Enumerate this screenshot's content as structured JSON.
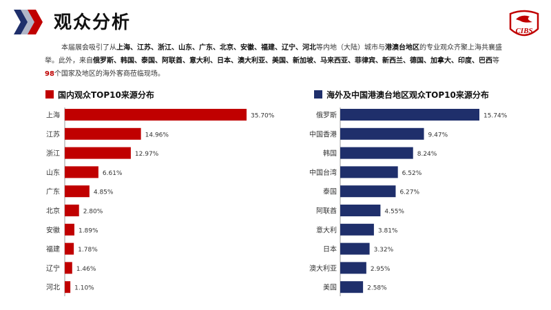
{
  "page": {
    "title": "观众分析",
    "logo_text": "CIBS"
  },
  "intro": {
    "p1": "本届展会吸引了从",
    "provinces": "上海、江苏、浙江、山东、广东、北京、安徽、福建、辽宁、河北",
    "p2": "等内地（大陆）城市与",
    "region": "港澳台地区",
    "p3": "的专业观众齐聚上海共襄盛举。此外，来自",
    "countries": "俄罗斯、韩国、泰国、阿联酋、意大利、日本、澳大利亚、美国、新加坡、马来西亚、菲律宾、新西兰、德国、加拿大、印度、巴西",
    "p4": "等",
    "count": "98",
    "p5": "个国家及地区的海外客商莅临现场。"
  },
  "colors": {
    "domestic": "#c00000",
    "overseas": "#1f2f6b"
  },
  "chart_data": [
    {
      "type": "bar",
      "orientation": "horizontal",
      "title": "国内观众TOP10来源分布",
      "categories": [
        "上海",
        "江苏",
        "浙江",
        "山东",
        "广东",
        "北京",
        "安徽",
        "福建",
        "辽宁",
        "河北"
      ],
      "values": [
        35.7,
        14.96,
        12.97,
        6.61,
        4.85,
        2.8,
        1.89,
        1.78,
        1.46,
        1.1
      ],
      "labels": [
        "35.70%",
        "14.96%",
        "12.97%",
        "6.61%",
        "4.85%",
        "2.80%",
        "1.89%",
        "1.78%",
        "1.46%",
        "1.10%"
      ],
      "xlim": [
        0,
        35.7
      ],
      "color": "#c00000"
    },
    {
      "type": "bar",
      "orientation": "horizontal",
      "title": "海外及中国港澳台地区观众TOP10来源分布",
      "categories": [
        "俄罗斯",
        "中国香港",
        "韩国",
        "中国台湾",
        "泰国",
        "阿联酋",
        "意大利",
        "日本",
        "澳大利亚",
        "美国"
      ],
      "values": [
        15.74,
        9.47,
        8.24,
        6.52,
        6.27,
        4.55,
        3.81,
        3.32,
        2.95,
        2.58
      ],
      "labels": [
        "15.74%",
        "9.47%",
        "8.24%",
        "6.52%",
        "6.27%",
        "4.55%",
        "3.81%",
        "3.32%",
        "2.95%",
        "2.58%"
      ],
      "xlim": [
        0,
        15.74
      ],
      "color": "#1f2f6b"
    }
  ]
}
